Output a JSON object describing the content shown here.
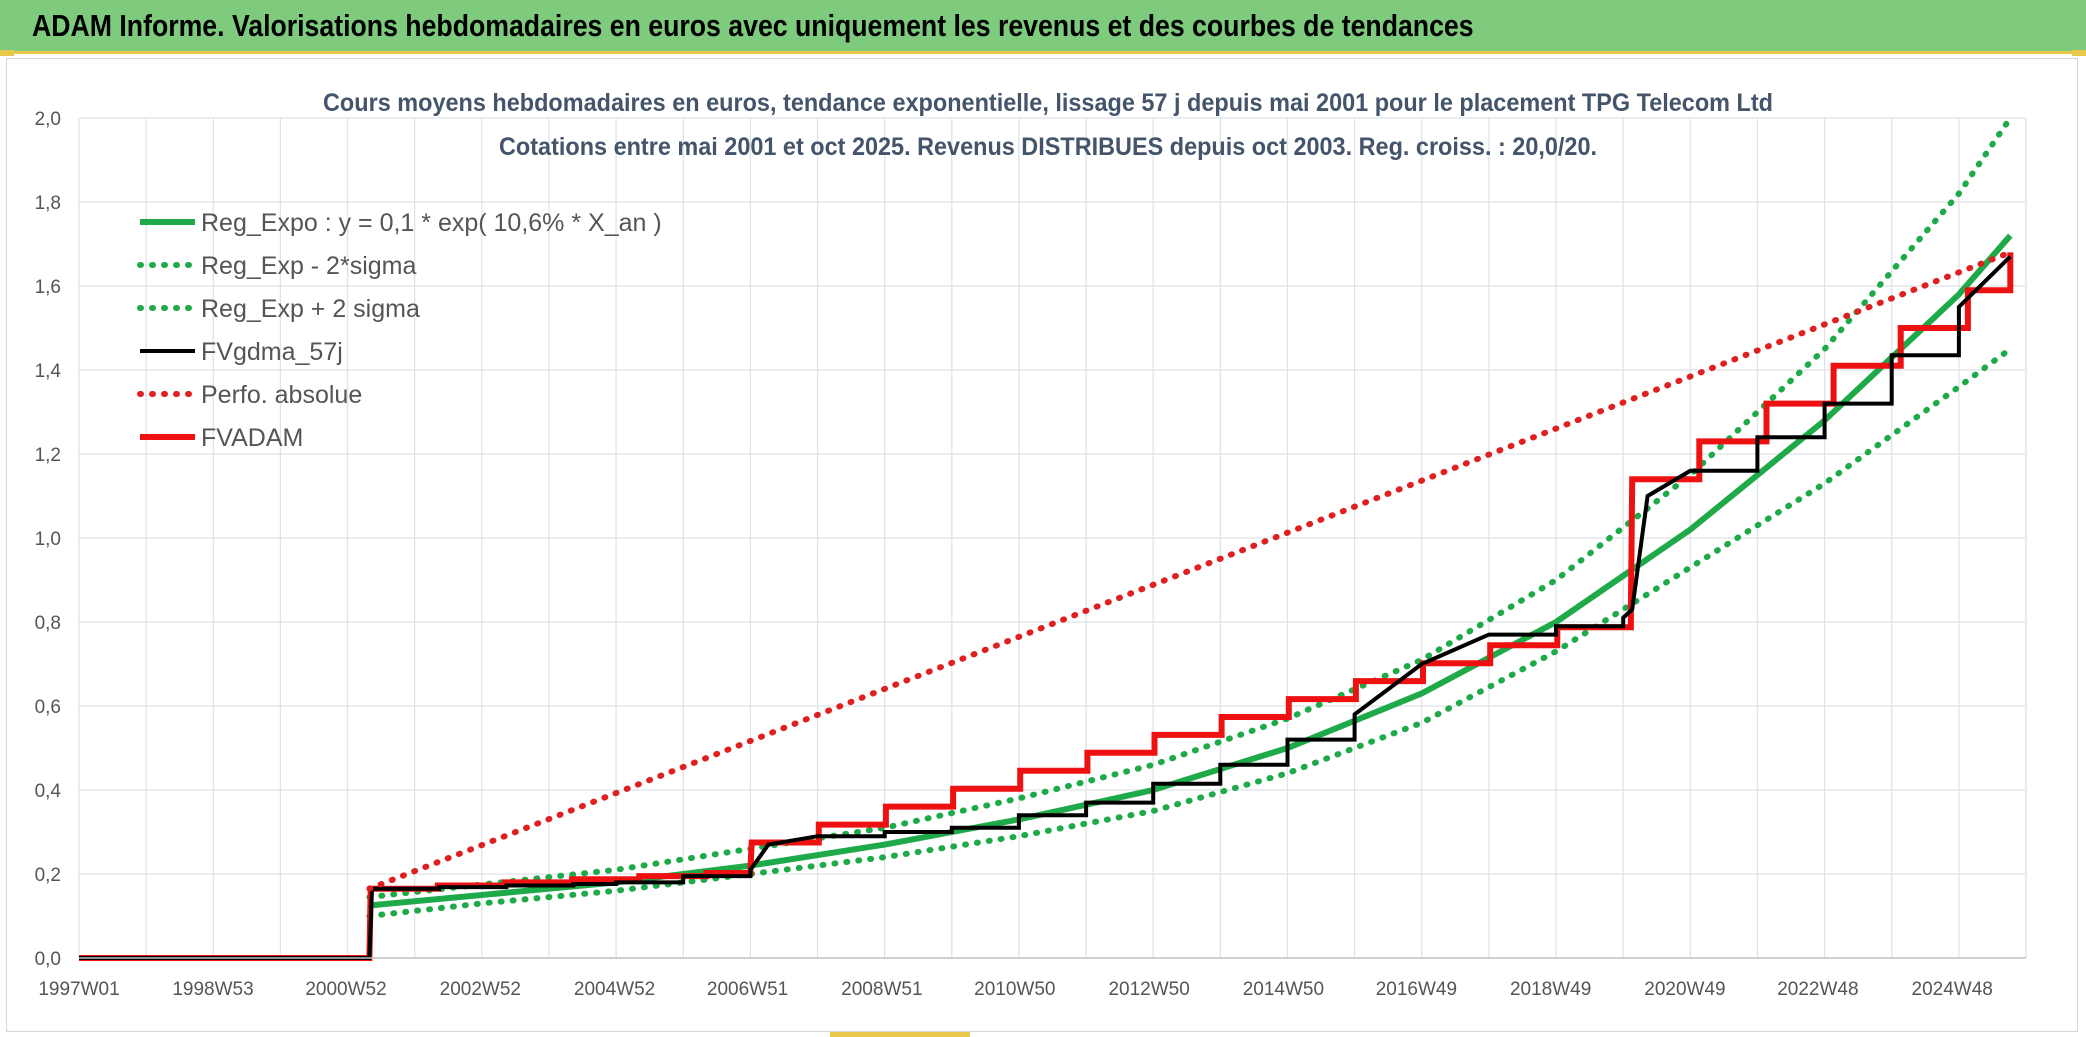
{
  "header": {
    "title": "ADAM Informe. Valorisations hebdomadaires en euros avec uniquement les revenus et des courbes de tendances"
  },
  "chart_data": {
    "type": "line",
    "title": "Cours moyens hebdomadaires en euros, tendance exponentielle, lissage 57 j depuis mai 2001 pour le placement TPG Telecom Ltd",
    "subtitle": "Cotations entre mai 2001 et oct 2025. Revenus DISTRIBUES depuis oct 2003. Reg. croiss. : 20,0/20.",
    "xlabel": "",
    "ylabel": "",
    "x_range": [
      "1997W01",
      "2026W01"
    ],
    "ylim": [
      0,
      2.0
    ],
    "y_ticks": [
      "0,0",
      "0,2",
      "0,4",
      "0,6",
      "0,8",
      "1,0",
      "1,2",
      "1,4",
      "1,6",
      "1,8",
      "2,0"
    ],
    "x_ticks": [
      "1997W01",
      "1998W53",
      "2000W52",
      "2002W52",
      "2004W52",
      "2006W51",
      "2008W51",
      "2010W50",
      "2012W50",
      "2014W50",
      "2016W49",
      "2018W49",
      "2020W49",
      "2022W48",
      "2024W48"
    ],
    "grid": true,
    "legend_position": "top-left",
    "series": [
      {
        "name": "Reg_Expo : y = 0,1 * exp( 10,6% *  X_an )",
        "color": "#1faa4a",
        "style": "solid",
        "x": [
          "2001W18",
          "2003W01",
          "2005W01",
          "2007W01",
          "2009W01",
          "2011W01",
          "2013W01",
          "2015W01",
          "2017W01",
          "2019W01",
          "2021W01",
          "2023W01",
          "2025W01",
          "2025W41"
        ],
        "values": [
          0.125,
          0.15,
          0.18,
          0.22,
          0.27,
          0.33,
          0.4,
          0.5,
          0.63,
          0.8,
          1.02,
          1.28,
          1.58,
          1.72
        ]
      },
      {
        "name": "Reg_Exp - 2*sigma",
        "color": "#1faa4a",
        "style": "dotted",
        "x": [
          "2001W18",
          "2003W01",
          "2005W01",
          "2007W01",
          "2009W01",
          "2011W01",
          "2013W01",
          "2015W01",
          "2017W01",
          "2019W01",
          "2021W01",
          "2023W01",
          "2025W01",
          "2025W41"
        ],
        "values": [
          0.1,
          0.13,
          0.16,
          0.2,
          0.24,
          0.29,
          0.35,
          0.44,
          0.56,
          0.73,
          0.93,
          1.13,
          1.36,
          1.45
        ]
      },
      {
        "name": "Reg_Exp + 2 sigma",
        "color": "#1faa4a",
        "style": "dotted",
        "x": [
          "2001W18",
          "2003W01",
          "2005W01",
          "2007W01",
          "2009W01",
          "2011W01",
          "2013W01",
          "2015W01",
          "2017W01",
          "2019W01",
          "2021W01",
          "2023W01",
          "2025W01",
          "2025W41"
        ],
        "values": [
          0.145,
          0.175,
          0.21,
          0.26,
          0.31,
          0.38,
          0.46,
          0.57,
          0.71,
          0.9,
          1.15,
          1.45,
          1.82,
          2.0
        ]
      },
      {
        "name": "FVgdma_57j",
        "color": "#000000",
        "style": "solid",
        "x": [
          "1997W01",
          "2001W18",
          "2001W20",
          "2005W01",
          "2007W01",
          "2007W15",
          "2008W01",
          "2010W01",
          "2012W01",
          "2014W01",
          "2016W01",
          "2017W01",
          "2018W01",
          "2020W01",
          "2020W08",
          "2020W20",
          "2021W01",
          "2023W01",
          "2025W01",
          "2025W41"
        ],
        "values": [
          0,
          0,
          0.165,
          0.18,
          0.21,
          0.27,
          0.29,
          0.31,
          0.37,
          0.46,
          0.58,
          0.7,
          0.77,
          0.81,
          0.83,
          1.1,
          1.16,
          1.32,
          1.55,
          1.67
        ]
      },
      {
        "name": "Perfo. absolue",
        "color": "#e02020",
        "style": "dotted",
        "x": [
          "2001W18",
          "2025W41"
        ],
        "values": [
          0.165,
          1.68
        ]
      },
      {
        "name": "FVADAM",
        "color": "#ee1111",
        "style": "solid",
        "x": [
          "1997W01",
          "2001W18",
          "2001W19",
          "2007W01",
          "2007W02",
          "2020W07",
          "2020W08",
          "2025W41"
        ],
        "values": [
          0,
          0,
          0.165,
          0.21,
          0.275,
          0.83,
          1.14,
          1.68
        ]
      }
    ]
  }
}
